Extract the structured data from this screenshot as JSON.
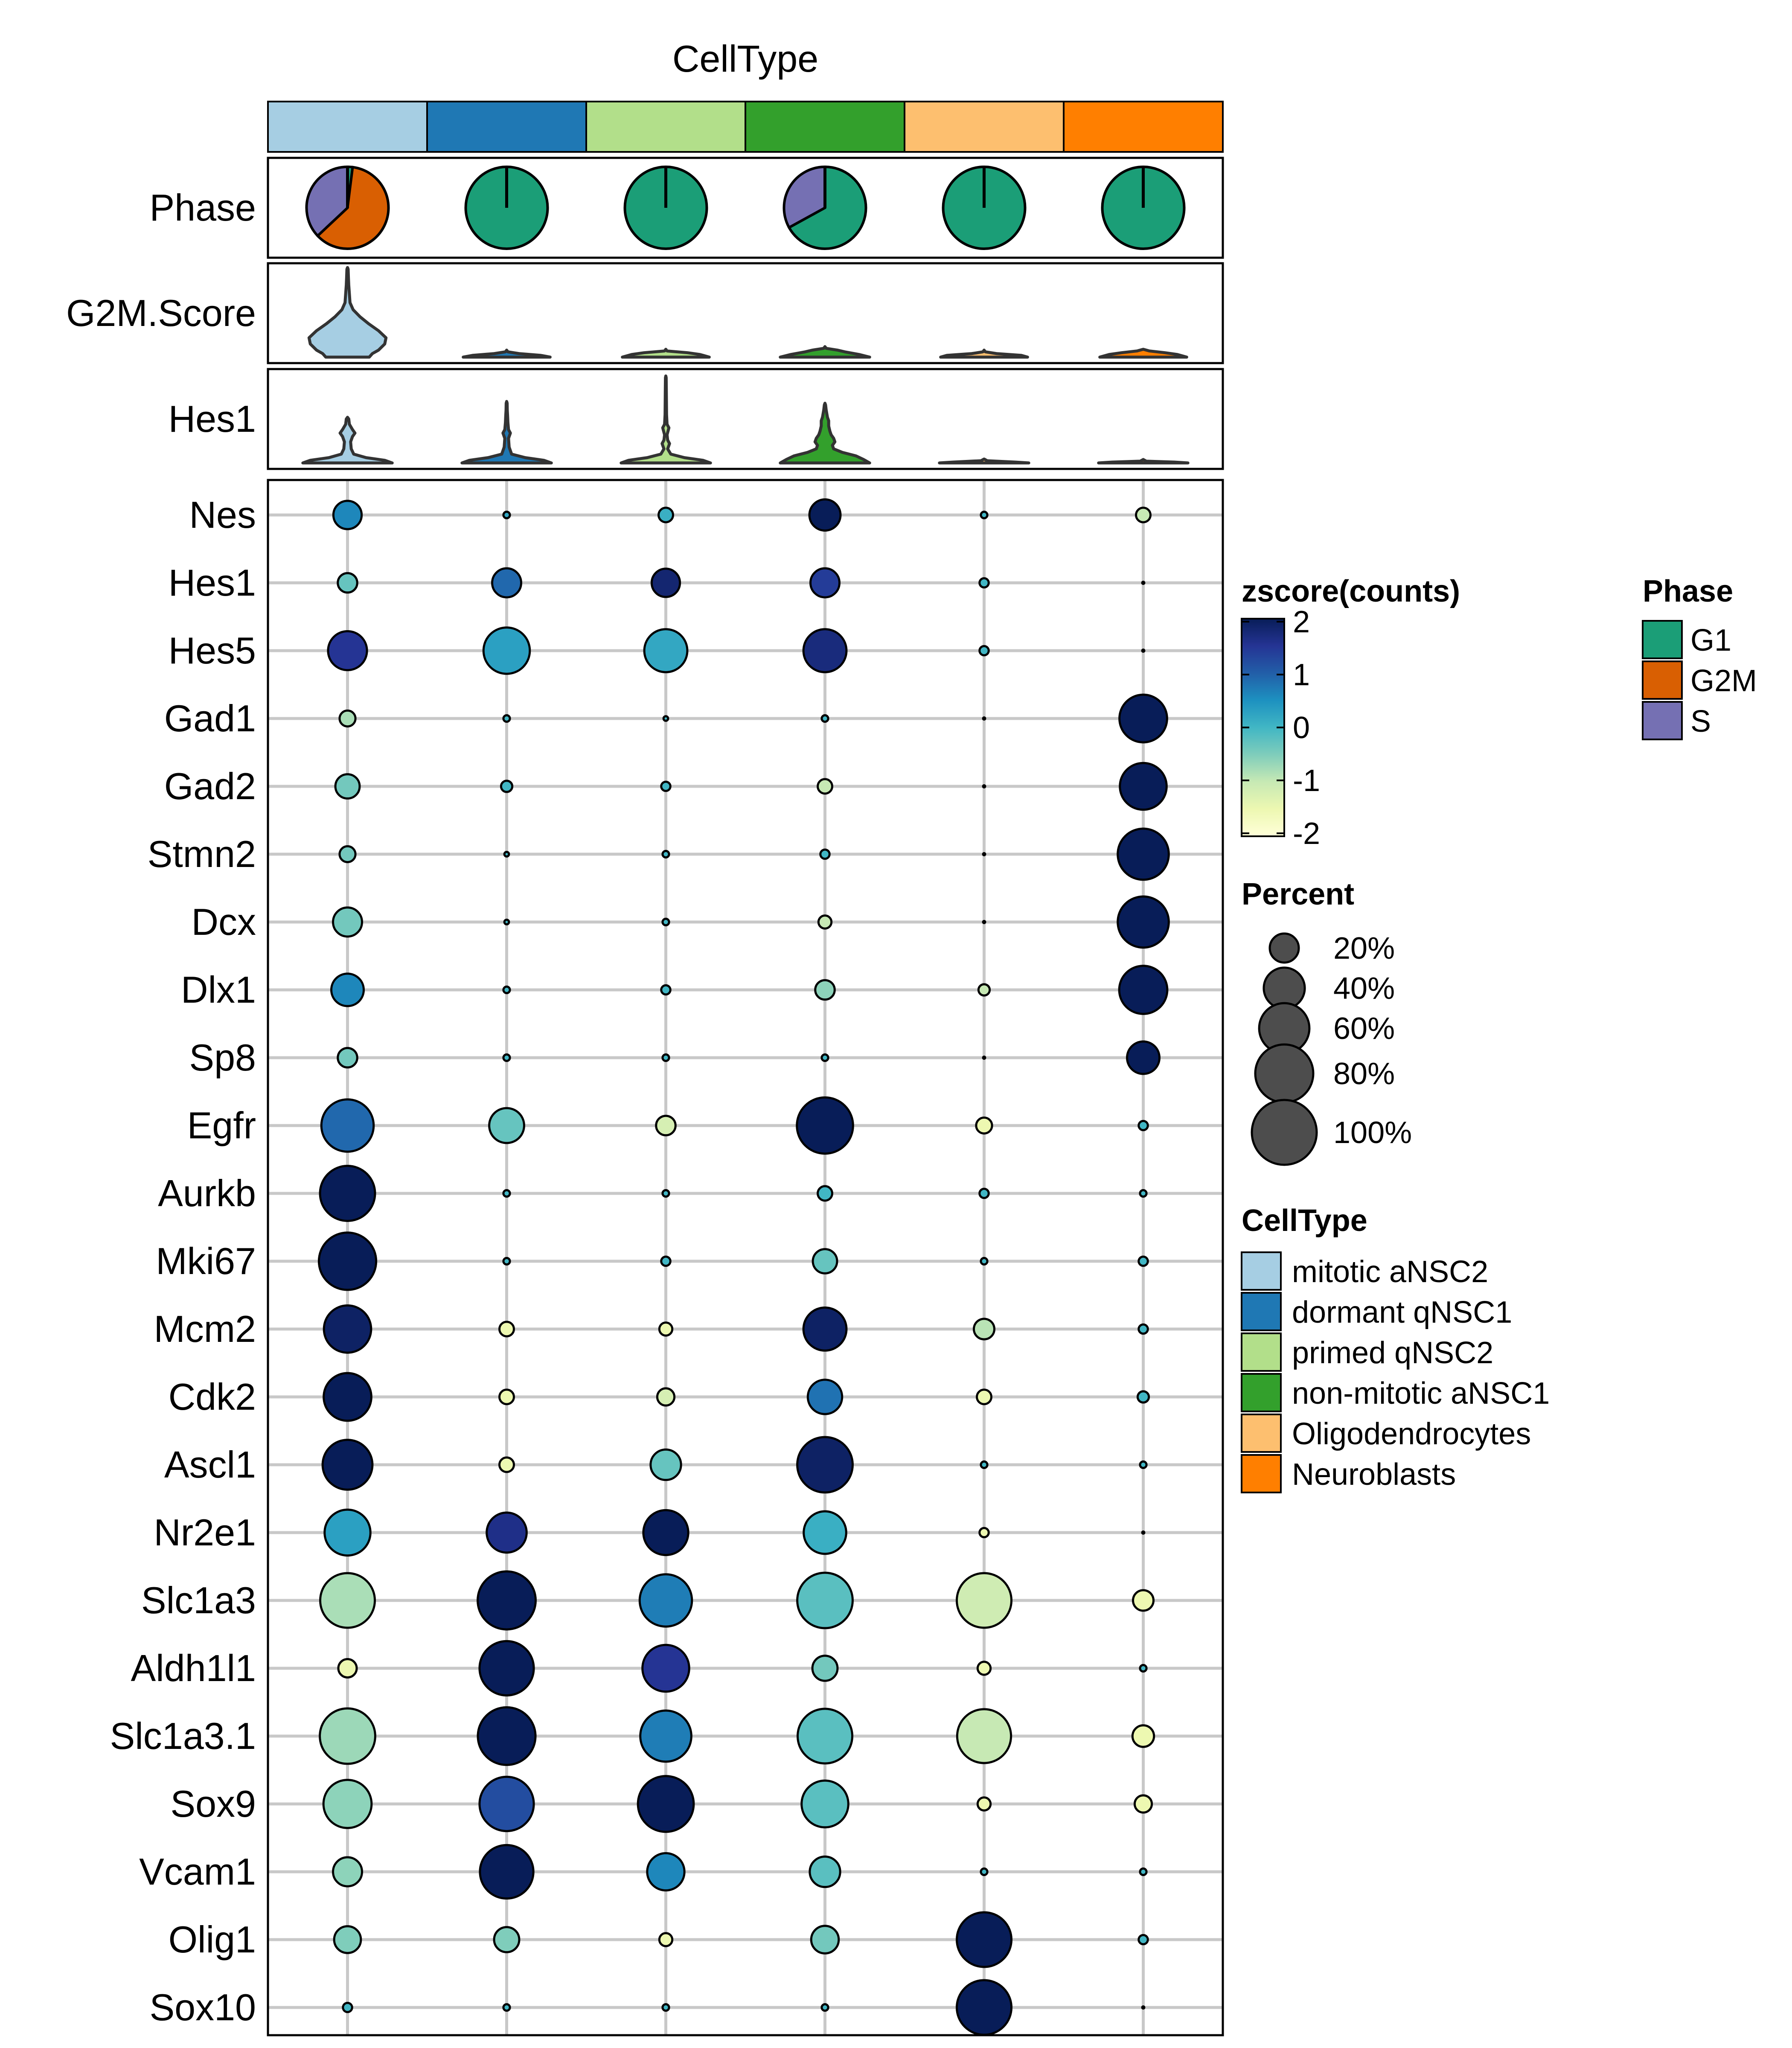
{
  "chart_data": {
    "type": "dotplot",
    "title": "CellType",
    "celltypes": [
      {
        "name": "mitotic aNSC2",
        "color": "#A6CEE3"
      },
      {
        "name": "dormant qNSC1",
        "color": "#1F78B4"
      },
      {
        "name": "primed qNSC2",
        "color": "#B2DF8A"
      },
      {
        "name": "non-mitotic aNSC1",
        "color": "#33A02C"
      },
      {
        "name": "Oligodendrocytes",
        "color": "#FDBF6F"
      },
      {
        "name": "Neuroblasts",
        "color": "#FF7F00"
      }
    ],
    "phase": {
      "label": "Phase",
      "legend_title": "Phase",
      "categories": [
        {
          "name": "G1",
          "color": "#1B9E77"
        },
        {
          "name": "G2M",
          "color": "#D95F02"
        },
        {
          "name": "S",
          "color": "#7570B3"
        }
      ],
      "fractions": [
        {
          "G1": 0.02,
          "G2M": 0.61,
          "S": 0.37
        },
        {
          "G1": 1,
          "G2M": 0,
          "S": 0
        },
        {
          "G1": 1,
          "G2M": 0,
          "S": 0
        },
        {
          "G1": 0.67,
          "G2M": 0,
          "S": 0.33
        },
        {
          "G1": 1,
          "G2M": 0,
          "S": 0
        },
        {
          "G1": 1,
          "G2M": 0,
          "S": 0
        }
      ]
    },
    "violins": [
      {
        "label": "G2M.Score",
        "shapes": [
          [
            [
              0,
              0.35
            ],
            [
              0.04,
              0.4
            ],
            [
              0.08,
              0.5
            ],
            [
              0.15,
              0.6
            ],
            [
              0.22,
              0.62
            ],
            [
              0.3,
              0.5
            ],
            [
              0.38,
              0.34
            ],
            [
              0.46,
              0.2
            ],
            [
              0.54,
              0.09
            ],
            [
              0.62,
              0.04
            ],
            [
              0.72,
              0.03
            ],
            [
              0.82,
              0.02
            ],
            [
              0.9,
              0.015
            ],
            [
              1,
              0.01
            ]
          ],
          [
            [
              0,
              0.7
            ],
            [
              0.02,
              0.55
            ],
            [
              0.04,
              0.2
            ],
            [
              0.06,
              0.02
            ]
          ],
          [
            [
              0,
              0.7
            ],
            [
              0.03,
              0.55
            ],
            [
              0.05,
              0.35
            ],
            [
              0.07,
              0.02
            ]
          ],
          [
            [
              0,
              0.72
            ],
            [
              0.03,
              0.55
            ],
            [
              0.06,
              0.32
            ],
            [
              0.08,
              0.2
            ],
            [
              0.1,
              0.02
            ]
          ],
          [
            [
              0,
              0.7
            ],
            [
              0.02,
              0.6
            ],
            [
              0.04,
              0.2
            ],
            [
              0.06,
              0.02
            ]
          ],
          [
            [
              0,
              0.7
            ],
            [
              0.03,
              0.55
            ],
            [
              0.05,
              0.35
            ],
            [
              0.07,
              0.1
            ]
          ]
        ]
      },
      {
        "label": "Hes1",
        "shapes": [
          [
            [
              0,
              0.72
            ],
            [
              0.03,
              0.6
            ],
            [
              0.06,
              0.3
            ],
            [
              0.1,
              0.1
            ],
            [
              0.16,
              0.06
            ],
            [
              0.24,
              0.05
            ],
            [
              0.3,
              0.08
            ],
            [
              0.34,
              0.12
            ],
            [
              0.38,
              0.08
            ],
            [
              0.44,
              0.03
            ],
            [
              0.5,
              0.02
            ]
          ],
          [
            [
              0,
              0.72
            ],
            [
              0.03,
              0.6
            ],
            [
              0.06,
              0.3
            ],
            [
              0.1,
              0.08
            ],
            [
              0.18,
              0.04
            ],
            [
              0.28,
              0.03
            ],
            [
              0.34,
              0.06
            ],
            [
              0.38,
              0.03
            ],
            [
              0.46,
              0.02
            ],
            [
              0.54,
              0.015
            ],
            [
              0.6,
              0.01
            ],
            [
              0.68,
              0.008
            ]
          ],
          [
            [
              0,
              0.72
            ],
            [
              0.03,
              0.6
            ],
            [
              0.06,
              0.3
            ],
            [
              0.1,
              0.08
            ],
            [
              0.16,
              0.03
            ],
            [
              0.22,
              0.06
            ],
            [
              0.26,
              0.03
            ],
            [
              0.32,
              0.02
            ],
            [
              0.4,
              0.05
            ],
            [
              0.44,
              0.02
            ],
            [
              0.55,
              0.012
            ],
            [
              0.7,
              0.01
            ],
            [
              0.85,
              0.008
            ],
            [
              0.97,
              0.006
            ]
          ],
          [
            [
              0,
              0.72
            ],
            [
              0.04,
              0.62
            ],
            [
              0.08,
              0.5
            ],
            [
              0.12,
              0.28
            ],
            [
              0.16,
              0.14
            ],
            [
              0.2,
              0.12
            ],
            [
              0.24,
              0.16
            ],
            [
              0.28,
              0.14
            ],
            [
              0.32,
              0.1
            ],
            [
              0.36,
              0.08
            ],
            [
              0.42,
              0.06
            ],
            [
              0.48,
              0.06
            ],
            [
              0.52,
              0.04
            ],
            [
              0.6,
              0.02
            ],
            [
              0.66,
              0.01
            ]
          ],
          [
            [
              0,
              0.72
            ],
            [
              0.01,
              0.5
            ],
            [
              0.025,
              0.05
            ]
          ],
          [
            [
              0,
              0.72
            ],
            [
              0.01,
              0.5
            ],
            [
              0.02,
              0.05
            ]
          ]
        ]
      }
    ],
    "genes": [
      "Nes",
      "Hes1",
      "Hes5",
      "Gad1",
      "Gad2",
      "Stmn2",
      "Dcx",
      "Dlx1",
      "Sp8",
      "Egfr",
      "Aurkb",
      "Mki67",
      "Mcm2",
      "Cdk2",
      "Ascl1",
      "Nr2e1",
      "Slc1a3",
      "Aldh1l1",
      "Slc1a3.1",
      "Sox9",
      "Vcam1",
      "Olig1",
      "Sox10"
    ],
    "percent": [
      [
        19,
        1,
        5,
        23,
        1,
        5
      ],
      [
        9,
        20,
        19,
        20,
        2,
        0
      ],
      [
        36,
        51,
        44,
        44,
        2,
        0
      ],
      [
        6,
        1,
        0.5,
        1,
        0,
        54
      ],
      [
        14,
        3,
        2,
        5,
        0,
        52
      ],
      [
        6,
        0.5,
        1,
        2,
        0,
        62
      ],
      [
        20,
        0.5,
        1,
        4,
        0,
        62
      ],
      [
        25,
        1,
        2,
        9,
        3,
        55
      ],
      [
        9,
        1,
        1,
        1,
        0,
        25
      ],
      [
        65,
        29,
        9,
        75,
        6,
        2
      ],
      [
        72,
        1,
        1,
        5,
        2,
        1
      ],
      [
        78,
        1,
        2,
        14,
        1,
        2
      ],
      [
        53,
        5,
        4,
        44,
        10,
        2
      ],
      [
        54,
        5,
        7,
        28,
        5,
        3
      ],
      [
        59,
        5,
        22,
        73,
        1,
        1
      ],
      [
        50,
        38,
        48,
        43,
        2,
        0
      ],
      [
        71,
        80,
        65,
        73,
        71,
        10
      ],
      [
        8,
        70,
        52,
        15,
        4,
        1
      ],
      [
        73,
        79,
        62,
        71,
        69,
        11
      ],
      [
        55,
        70,
        74,
        52,
        4,
        7
      ],
      [
        20,
        68,
        33,
        22,
        1,
        1
      ],
      [
        17,
        15,
        4,
        18,
        71,
        2
      ],
      [
        2,
        1,
        1,
        1,
        71,
        0
      ]
    ],
    "zscore": [
      [
        0.6,
        0.2,
        0.1,
        2.0,
        0,
        -1
      ],
      [
        -0.3,
        0.9,
        1.8,
        1.4,
        0,
        0
      ],
      [
        1.5,
        0.3,
        0.2,
        1.7,
        0,
        0
      ],
      [
        -0.8,
        0,
        0,
        0,
        0,
        2.4
      ],
      [
        -0.4,
        0,
        0,
        -1,
        0,
        2.3
      ],
      [
        -0.4,
        0,
        0,
        0,
        0,
        2.4
      ],
      [
        -0.4,
        0,
        0,
        -1,
        0,
        2.4
      ],
      [
        0.6,
        0,
        0,
        -0.6,
        -1,
        2.3
      ],
      [
        -0.4,
        0,
        0,
        0,
        0,
        2.4
      ],
      [
        0.9,
        -0.3,
        -1.2,
        2.3,
        -1.5,
        0
      ],
      [
        2.3,
        0,
        0,
        0,
        0,
        0
      ],
      [
        2.3,
        0,
        0,
        -0.3,
        0,
        0
      ],
      [
        1.9,
        -1.5,
        -1.5,
        1.9,
        -0.9,
        0
      ],
      [
        2.2,
        -1.5,
        -1.2,
        0.8,
        -1.5,
        0
      ],
      [
        2.0,
        -1.5,
        -0.3,
        1.9,
        0,
        0
      ],
      [
        0.3,
        1.6,
        2.0,
        0.1,
        -1.5,
        0
      ],
      [
        -0.8,
        2.2,
        0.7,
        -0.2,
        -1.1,
        -1.5
      ],
      [
        -1.5,
        2.2,
        1.5,
        -0.4,
        -1.5,
        0
      ],
      [
        -0.7,
        2.2,
        0.7,
        -0.2,
        -1.0,
        -1.5
      ],
      [
        -0.6,
        1.2,
        2.2,
        -0.2,
        -1.5,
        -1.5
      ],
      [
        -0.6,
        2.2,
        0.6,
        -0.2,
        0,
        0
      ],
      [
        -0.5,
        -0.5,
        -1.5,
        -0.4,
        2.4,
        0
      ],
      [
        0,
        0,
        0,
        0,
        2.4,
        0
      ]
    ],
    "colorbar": {
      "title": "zscore(counts)",
      "min": -2,
      "max": 2,
      "ticks": [
        {
          "v": 2,
          "label": "2"
        },
        {
          "v": 1,
          "label": "1"
        },
        {
          "v": 0,
          "label": "0"
        },
        {
          "v": -1,
          "label": "-1"
        },
        {
          "v": -2,
          "label": "-2"
        }
      ],
      "stops": [
        "#FFFFD9",
        "#EDF8B1",
        "#C7E9B4",
        "#7FCDBB",
        "#41B6C4",
        "#1D91C0",
        "#225EA8",
        "#253494",
        "#081D58"
      ]
    },
    "size_legend": {
      "title": "Percent",
      "entries": [
        {
          "value": 20,
          "label": "20%"
        },
        {
          "value": 40,
          "label": "40%"
        },
        {
          "value": 60,
          "label": "60%"
        },
        {
          "value": 80,
          "label": "80%"
        },
        {
          "value": 100,
          "label": "100%"
        }
      ],
      "point_color": "#4D4D4D"
    },
    "celltype_legend_title": "CellType"
  }
}
